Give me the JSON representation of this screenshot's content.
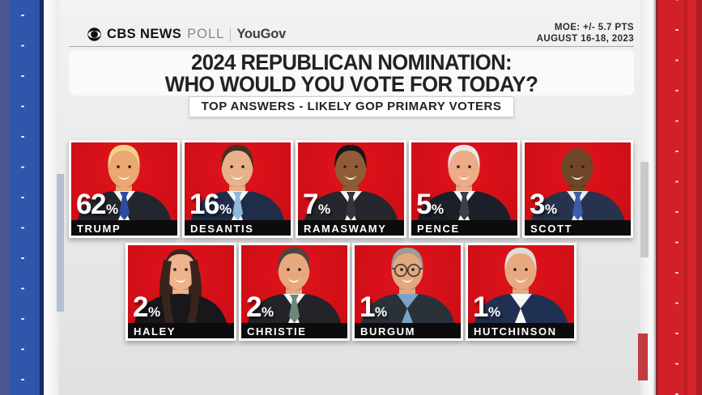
{
  "header": {
    "logo": {
      "cbs_news": "CBS NEWS",
      "poll": "POLL",
      "yougov": "YouGov"
    },
    "moe": {
      "line1": "MOE: +/- 5.7 PTS",
      "line2": "AUGUST 16-18, 2023"
    }
  },
  "title": {
    "line1": "2024 REPUBLICAN NOMINATION:",
    "line2": "WHO WOULD YOU VOTE FOR TODAY?"
  },
  "subtitle": "TOP ANSWERS - LIKELY GOP PRIMARY VOTERS",
  "colors": {
    "card_red": "#d0111a",
    "name_bar_black": "#0c0c0c",
    "pillar_blue": "#2e57ac",
    "pillar_red": "#d12028",
    "background_gray": "#e9e9e9",
    "text_dark": "#222222",
    "text_white": "#ffffff"
  },
  "chart_data": {
    "type": "bar",
    "title": "2024 REPUBLICAN NOMINATION: WHO WOULD YOU VOTE FOR TODAY?",
    "subtitle": "TOP ANSWERS - LIKELY GOP PRIMARY VOTERS",
    "unit": "%",
    "categories": [
      "TRUMP",
      "DESANTIS",
      "RAMASWAMY",
      "PENCE",
      "SCOTT",
      "HALEY",
      "CHRISTIE",
      "BURGUM",
      "HUTCHINSON"
    ],
    "values": [
      62,
      16,
      7,
      5,
      3,
      2,
      2,
      1,
      1
    ],
    "annotations": [
      "MOE: +/- 5.7 PTS",
      "AUGUST 16-18, 2023"
    ],
    "legend": "none",
    "layout": "photo grid, row of 5 then row of 4"
  },
  "candidates": {
    "row1": [
      {
        "name": "TRUMP",
        "value": 62,
        "portrait": {
          "style": "male",
          "hair": "#f2d385",
          "skin": "#eba873",
          "suit": "#23262e",
          "shirt": "#f6f6f6",
          "tie": "#2c4d9e"
        }
      },
      {
        "name": "DESANTIS",
        "value": 16,
        "portrait": {
          "style": "male",
          "hair": "#453027",
          "skin": "#e9b18a",
          "suit": "#1f2d4a",
          "shirt": "#f4f4f4",
          "tie": "#8fb8dc"
        }
      },
      {
        "name": "RAMASWAMY",
        "value": 7,
        "portrait": {
          "style": "male",
          "hair": "#17141a",
          "skin": "#8f5c36",
          "suit": "#26272e",
          "shirt": "#f6f6f6",
          "tie": "#33343c"
        }
      },
      {
        "name": "PENCE",
        "value": 5,
        "portrait": {
          "style": "male",
          "hair": "#e9e9e7",
          "skin": "#edab88",
          "suit": "#1b1f28",
          "shirt": "#f7f7f7",
          "tie": "#3c3f46"
        }
      },
      {
        "name": "SCOTT",
        "value": 3,
        "portrait": {
          "style": "bald",
          "hair": "#3c2415",
          "skin": "#6e4526",
          "suit": "#27334c",
          "shirt": "#e8eef5",
          "tie": "#3a5ea8"
        }
      }
    ],
    "row2": [
      {
        "name": "HALEY",
        "value": 2,
        "portrait": {
          "style": "female",
          "hair": "#38241d",
          "skin": "#eeb28c",
          "suit": "#17171c"
        }
      },
      {
        "name": "CHRISTIE",
        "value": 2,
        "portrait": {
          "style": "male",
          "hair": "#4d443c",
          "skin": "#e8a87e",
          "suit": "#232329",
          "shirt": "#f5f5f5",
          "tie": "#6e8876"
        }
      },
      {
        "name": "BURGUM",
        "value": 1,
        "portrait": {
          "style": "male",
          "hair": "#9d9c96",
          "skin": "#e2a87f",
          "suit": "#2b3138",
          "shirt": "#7ca3c6",
          "glasses": true
        }
      },
      {
        "name": "HUTCHINSON",
        "value": 1,
        "portrait": {
          "style": "male",
          "hair": "#dcdcd8",
          "skin": "#e7aa80",
          "suit": "#203052",
          "shirt": "#f6f6f6"
        }
      }
    ]
  }
}
